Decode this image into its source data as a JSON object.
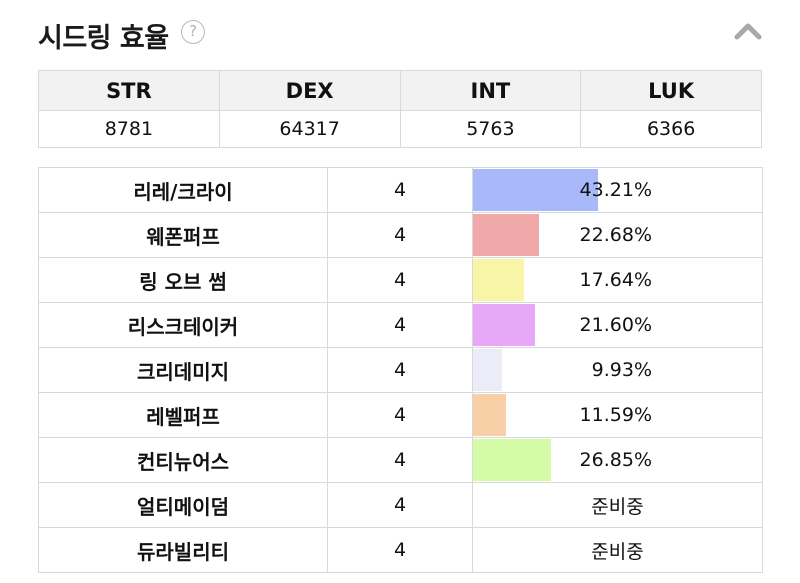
{
  "header": {
    "title": "시드링 효율",
    "help_icon": "question-circle-icon",
    "collapse_icon": "chevron-up-icon"
  },
  "stats": {
    "headers": [
      "STR",
      "DEX",
      "INT",
      "LUK"
    ],
    "values": [
      "8781",
      "64317",
      "5763",
      "6366"
    ]
  },
  "rows": [
    {
      "name": "리레/크라이",
      "level": "4",
      "percent": "43.21%",
      "fill": 0.4321,
      "color": "#a8b8f8"
    },
    {
      "name": "웨폰퍼프",
      "level": "4",
      "percent": "22.68%",
      "fill": 0.2268,
      "color": "#f0a8a8"
    },
    {
      "name": "링 오브 썸",
      "level": "4",
      "percent": "17.64%",
      "fill": 0.1764,
      "color": "#f8f4a8"
    },
    {
      "name": "리스크테이커",
      "level": "4",
      "percent": "21.60%",
      "fill": 0.216,
      "color": "#e8a8f8"
    },
    {
      "name": "크리데미지",
      "level": "4",
      "percent": "9.93%",
      "fill": 0.0993,
      "color": "#ececf8"
    },
    {
      "name": "레벨퍼프",
      "level": "4",
      "percent": "11.59%",
      "fill": 0.1159,
      "color": "#f8d0a8"
    },
    {
      "name": "컨티뉴어스",
      "level": "4",
      "percent": "26.85%",
      "fill": 0.2685,
      "color": "#d4fca8"
    },
    {
      "name": "얼티메이덤",
      "level": "4",
      "percent": "준비중",
      "fill": 0,
      "color": ""
    },
    {
      "name": "듀라빌리티",
      "level": "4",
      "percent": "준비중",
      "fill": 0,
      "color": ""
    }
  ]
}
